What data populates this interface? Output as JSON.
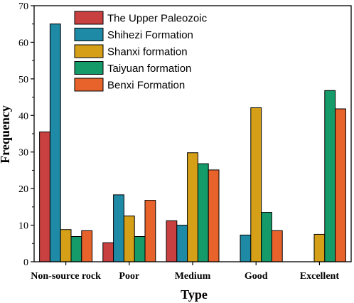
{
  "chart_data": {
    "type": "bar",
    "title": "",
    "xlabel": "Type",
    "ylabel": "Frequency",
    "ylim": [
      0,
      70
    ],
    "yticks": [
      0,
      10,
      20,
      30,
      40,
      50,
      60,
      70
    ],
    "categories": [
      "Non-source rock",
      "Poor",
      "Medium",
      "Good",
      "Excellent"
    ],
    "series": [
      {
        "name": "The Upper Paleozoic",
        "color": "#c8403f",
        "values": [
          35.5,
          5.2,
          11.2,
          0,
          0
        ]
      },
      {
        "name": "Shihezi Formation",
        "color": "#1f8aa6",
        "values": [
          65,
          18.3,
          10,
          7.3,
          0
        ]
      },
      {
        "name": "Shanxi formation",
        "color": "#d5a018",
        "values": [
          8.8,
          12.5,
          29.8,
          42.1,
          7.5
        ]
      },
      {
        "name": "Taiyuan formation",
        "color": "#159a6a",
        "values": [
          6.9,
          6.9,
          26.8,
          13.5,
          46.8
        ]
      },
      {
        "name": "Benxi Formation",
        "color": "#e8622b",
        "values": [
          8.5,
          16.8,
          25.1,
          8.5,
          41.8
        ]
      }
    ],
    "legend_position": "top-left",
    "grid": false
  }
}
